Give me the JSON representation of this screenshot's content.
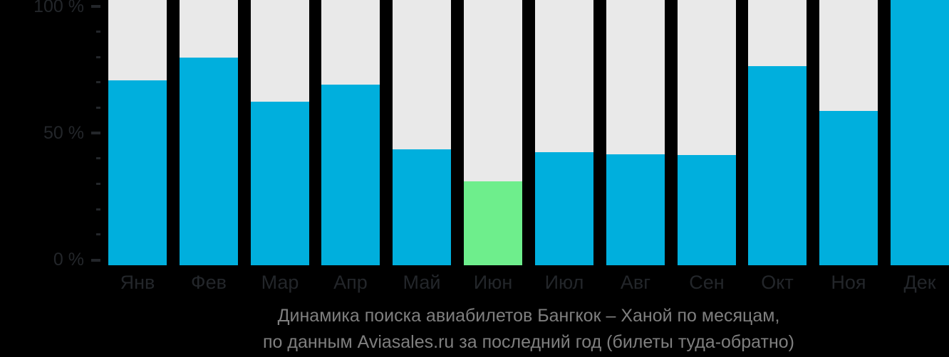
{
  "caption": {
    "line1": "Динамика поиска авиабилетов Бангкок – Ханой по месяцам,",
    "line2": "по данным Aviasales.ru за последний год (билеты туда-обратно)"
  },
  "colors": {
    "background": "#000000",
    "bar": "#00afdd",
    "highlight": "#6eee8c",
    "track": "#e9e9e9",
    "axis_text": "#23262a",
    "caption_text": "#7f7f7f"
  },
  "chart_data": {
    "type": "bar",
    "title": "Динамика поиска авиабилетов Бангкок – Ханой по месяцам, по данным Aviasales.ru за последний год (билеты туда-обратно)",
    "categories": [
      "Янв",
      "Фев",
      "Мар",
      "Апр",
      "Май",
      "Июн",
      "Июл",
      "Авг",
      "Сен",
      "Окт",
      "Ноя",
      "Дек"
    ],
    "values": [
      69.7,
      78.3,
      61.7,
      68.1,
      43.7,
      31.6,
      42.6,
      41.8,
      41.6,
      75.1,
      58.2,
      100
    ],
    "highlight_index": 5,
    "xlabel": "",
    "ylabel": "%",
    "ylim": [
      0,
      100
    ],
    "grid": false,
    "legend": "none",
    "y_ticks": [
      {
        "value": 100,
        "label": "100 %"
      },
      {
        "value": 90
      },
      {
        "value": 80
      },
      {
        "value": 70
      },
      {
        "value": 60
      },
      {
        "value": 50,
        "label": "50 %"
      },
      {
        "value": 40
      },
      {
        "value": 30
      },
      {
        "value": 20
      },
      {
        "value": 10
      },
      {
        "value": 0,
        "label": "0 %"
      }
    ]
  }
}
